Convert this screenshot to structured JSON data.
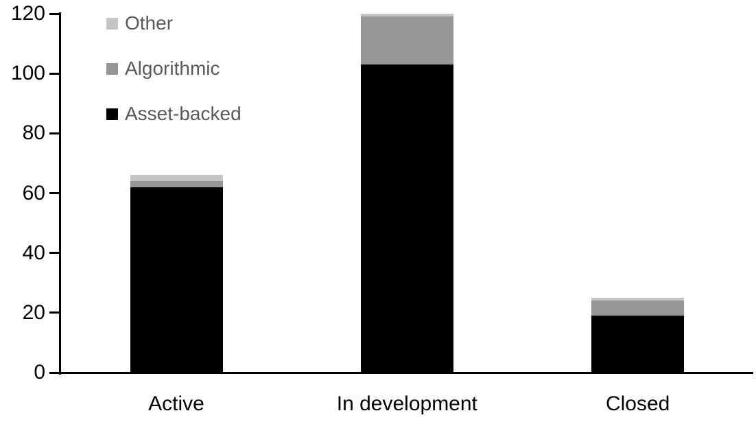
{
  "chart_data": {
    "type": "bar",
    "stacked": true,
    "title": "",
    "xlabel": "",
    "ylabel": "",
    "categories": [
      "Active",
      "In development",
      "Closed"
    ],
    "series": [
      {
        "name": "Asset-backed",
        "color": "#000000",
        "values": [
          62,
          103,
          19
        ]
      },
      {
        "name": "Algorithmic",
        "color": "#969696",
        "values": [
          2,
          16,
          5
        ]
      },
      {
        "name": "Other",
        "color": "#c5c5c5",
        "values": [
          2,
          1,
          1
        ]
      }
    ],
    "stack_totals": [
      66,
      120,
      25
    ],
    "ylim": [
      0,
      120
    ],
    "yticks": [
      0,
      20,
      40,
      60,
      80,
      100,
      120
    ],
    "grid": false,
    "legend_position": "top-left",
    "legend_order_top_to_bottom": [
      "Other",
      "Algorithmic",
      "Asset-backed"
    ]
  },
  "legend": {
    "text_color": "#595959",
    "items": [
      {
        "label": "Other",
        "color": "#c5c5c5"
      },
      {
        "label": "Algorithmic",
        "color": "#969696"
      },
      {
        "label": "Asset-backed",
        "color": "#000000"
      }
    ]
  },
  "axes": {
    "line_color": "#000000",
    "label_color": "#000000"
  }
}
